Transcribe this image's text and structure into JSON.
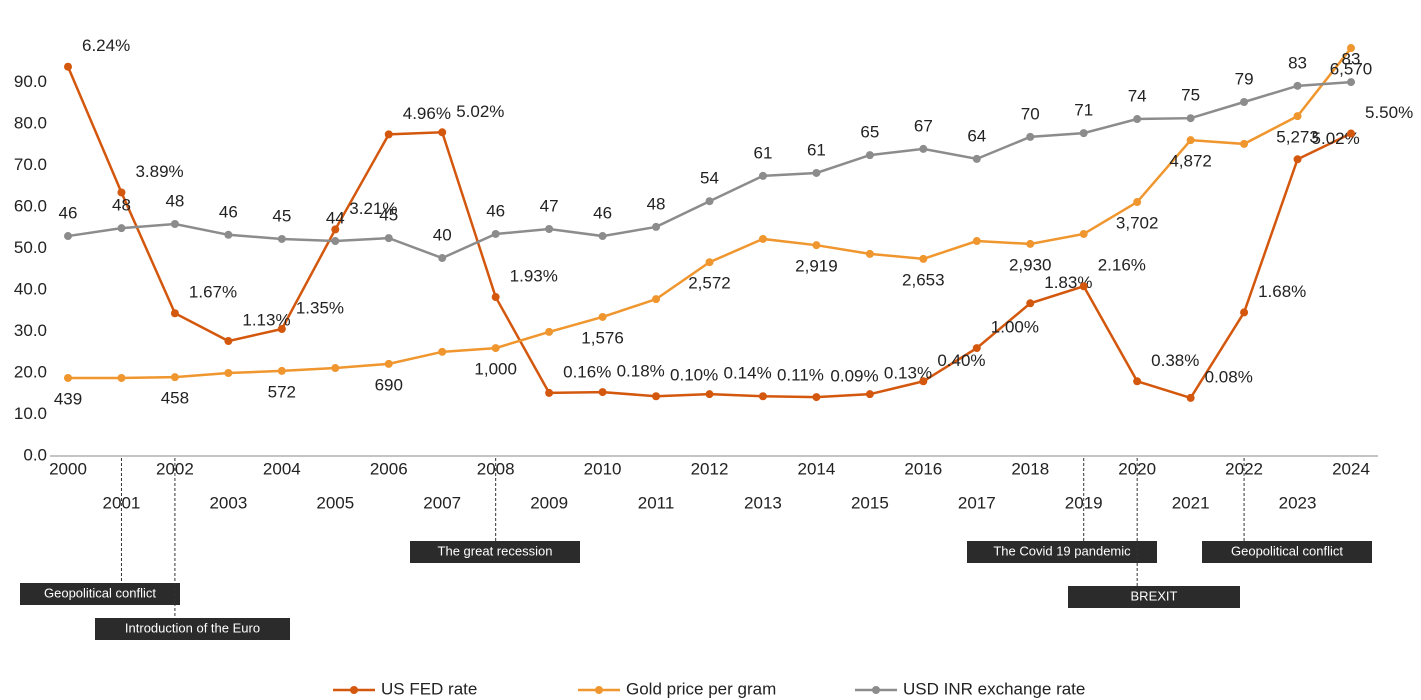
{
  "chart_data": {
    "type": "line",
    "x": [
      2000,
      2001,
      2002,
      2003,
      2004,
      2005,
      2006,
      2007,
      2008,
      2009,
      2010,
      2011,
      2012,
      2013,
      2014,
      2015,
      2016,
      2017,
      2018,
      2019,
      2020,
      2021,
      2022,
      2023,
      2024
    ],
    "xlim": [
      2000,
      2024
    ],
    "ylim": [
      0,
      100
    ],
    "yticks": [
      {
        "value": 0,
        "label": "0.0"
      },
      {
        "value": 10,
        "label": "10.0"
      },
      {
        "value": 20,
        "label": "20.0"
      },
      {
        "value": 30,
        "label": "30.0"
      },
      {
        "value": 40,
        "label": "40.0"
      },
      {
        "value": 50,
        "label": "50.0"
      },
      {
        "value": 60,
        "label": "60.0"
      },
      {
        "value": 70,
        "label": "70.0"
      },
      {
        "value": 80,
        "label": "80.0"
      },
      {
        "value": 90,
        "label": "90.0"
      }
    ],
    "series": [
      {
        "name": "US FED rate",
        "color": "#d4570e",
        "values": [
          93.8,
          63.5,
          34.4,
          27.7,
          30.6,
          54.6,
          77.5,
          78.0,
          38.3,
          15.2,
          15.4,
          14.4,
          14.9,
          14.4,
          14.2,
          14.9,
          18.0,
          26.0,
          36.8,
          40.9,
          18.0,
          14.0,
          34.6,
          71.5,
          77.7
        ],
        "value_labels": [
          "6.24%",
          "3.89%",
          "1.67%",
          "1.13%",
          "1.35%",
          "3.21%",
          "4.96%",
          "5.02%",
          "1.93%",
          "0.16%",
          "0.18%",
          "0.10%",
          "0.14%",
          "0.11%",
          "0.09%",
          "0.13%",
          "0.40%",
          "1.00%",
          "1.83%",
          "2.16%",
          "0.38%",
          "0.08%",
          "1.68%",
          "5.02%",
          "5.50%"
        ]
      },
      {
        "name": "Gold price per gram",
        "color": "#f0962e",
        "values": [
          18.8,
          18.8,
          19.0,
          20.0,
          20.5,
          21.2,
          22.2,
          25.1,
          26.0,
          29.9,
          33.5,
          37.8,
          46.7,
          52.3,
          50.8,
          48.7,
          47.5,
          51.8,
          51.1,
          53.5,
          61.2,
          76.1,
          75.2,
          81.9,
          98.3
        ],
        "value_labels": [
          "439",
          null,
          "458",
          null,
          "572",
          null,
          "690",
          null,
          "1,000",
          null,
          "1,576",
          null,
          "2,572",
          null,
          "2,919",
          null,
          "2,653",
          null,
          "2,930",
          null,
          "3,702",
          "4,872",
          null,
          "5,273",
          "6,570"
        ]
      },
      {
        "name": "USD INR exchange rate",
        "color": "#8c8c8c",
        "values": [
          53.0,
          54.9,
          55.9,
          53.3,
          52.3,
          51.8,
          52.5,
          47.7,
          53.5,
          54.7,
          53.0,
          55.2,
          61.4,
          67.5,
          68.2,
          72.5,
          74.0,
          71.6,
          76.9,
          77.8,
          81.2,
          81.4,
          85.3,
          89.2,
          90.1
        ],
        "value_labels": [
          "46",
          "48",
          "48",
          "46",
          "45",
          "44",
          "45",
          "40",
          "46",
          "47",
          "46",
          "48",
          "54",
          "61",
          "61",
          "65",
          "67",
          "64",
          "70",
          "71",
          "74",
          "75",
          "79",
          "83",
          "83"
        ]
      }
    ],
    "annotations": [
      {
        "text": "Geopolitical conflict",
        "x": 2001
      },
      {
        "text": "Introduction of the Euro",
        "x": 2002
      },
      {
        "text": "The great recession",
        "x": 2008
      },
      {
        "text": "The Covid  19 pandemic",
        "x": 2019
      },
      {
        "text": "BREXIT",
        "x": 2020
      },
      {
        "text": "Geopolitical conflict",
        "x": 2022
      }
    ]
  }
}
